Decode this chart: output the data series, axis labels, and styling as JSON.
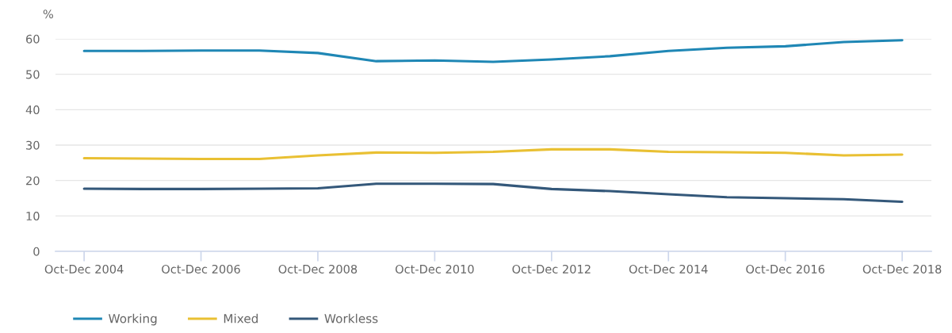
{
  "chart_data": {
    "type": "line",
    "ylabel": "%",
    "categories": [
      "Oct-Dec 2004",
      null,
      "Oct-Dec 2006",
      null,
      "Oct-Dec 2008",
      null,
      "Oct-Dec 2010",
      null,
      "Oct-Dec 2012",
      null,
      "Oct-Dec 2014",
      null,
      "Oct-Dec 2016",
      null,
      "Oct-Dec 2018"
    ],
    "series": [
      {
        "name": "Working",
        "color": "#1f87b5",
        "values": [
          56.6,
          56.6,
          56.7,
          56.7,
          56.0,
          53.7,
          53.9,
          53.5,
          54.2,
          55.1,
          56.6,
          57.5,
          57.9,
          59.1,
          59.6
        ]
      },
      {
        "name": "Mixed",
        "color": "#e9c033",
        "values": [
          26.3,
          26.2,
          26.1,
          26.1,
          27.1,
          27.9,
          27.8,
          28.1,
          28.8,
          28.8,
          28.1,
          28.0,
          27.8,
          27.1,
          27.3
        ]
      },
      {
        "name": "Workless",
        "color": "#34587a",
        "values": [
          17.7,
          17.6,
          17.6,
          17.7,
          17.8,
          19.1,
          19.1,
          19.0,
          17.6,
          17.0,
          16.1,
          15.3,
          15.0,
          14.7,
          14.0
        ]
      }
    ],
    "ylim": [
      0,
      60
    ],
    "yticks": [
      0,
      10,
      20,
      30,
      40,
      50,
      60
    ],
    "grid": "y",
    "legend": "bottom",
    "line_style": "solid"
  }
}
